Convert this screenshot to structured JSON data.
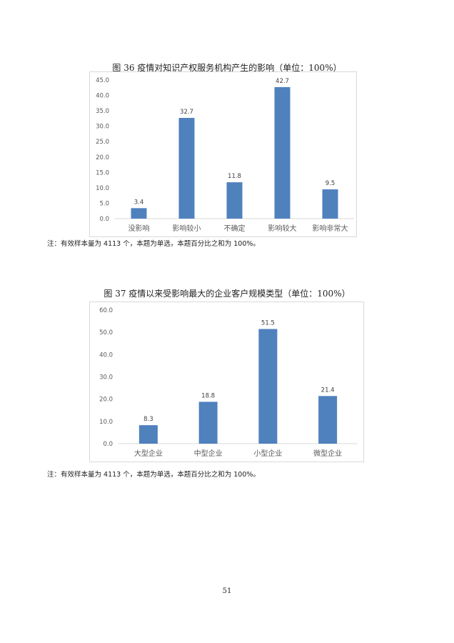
{
  "chart_data": [
    {
      "type": "bar",
      "title": "图 36  疫情对知识产权服务机构产生的影响（单位：100%）",
      "categories": [
        "没影响",
        "影响较小",
        "不确定",
        "影响较大",
        "影响非常大"
      ],
      "values": [
        3.4,
        32.7,
        11.8,
        42.7,
        9.5
      ],
      "ylim": [
        0,
        45
      ],
      "yticks": [
        "0.0",
        "5.0",
        "10.0",
        "15.0",
        "20.0",
        "25.0",
        "30.0",
        "35.0",
        "40.0",
        "45.0"
      ],
      "data_labels": [
        "3.4",
        "32.7",
        "11.8",
        "42.7",
        "9.5"
      ],
      "grid": false,
      "color": "#4f81bd"
    },
    {
      "type": "bar",
      "title": "图 37   疫情以来受影响最大的企业客户规模类型（单位：100%）",
      "categories": [
        "大型企业",
        "中型企业",
        "小型企业",
        "微型企业"
      ],
      "values": [
        8.3,
        18.8,
        51.5,
        21.4
      ],
      "ylim": [
        0,
        60
      ],
      "yticks": [
        "0.0",
        "10.0",
        "20.0",
        "30.0",
        "40.0",
        "50.0",
        "60.0"
      ],
      "data_labels": [
        "8.3",
        "18.8",
        "51.5",
        "21.4"
      ],
      "grid": false,
      "color": "#4f81bd"
    }
  ],
  "notes": [
    "注：有效样本量为 4113 个，本题为单选，本题百分比之和为 100%。",
    "注：有效样本量为 4113 个，本题为单选，本题百分比之和为 100%。"
  ],
  "page_number": "51"
}
